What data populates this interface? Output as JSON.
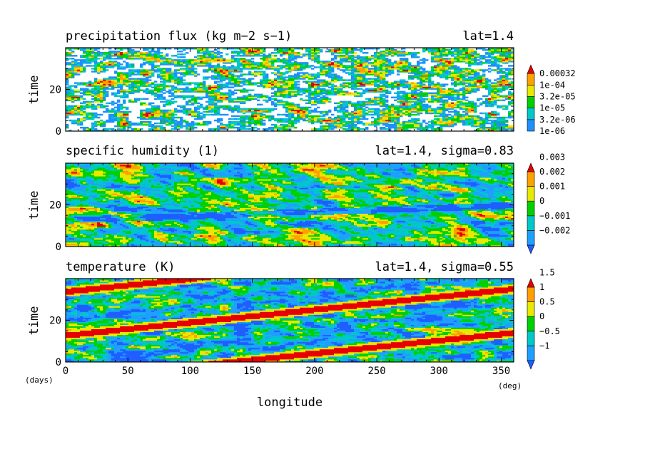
{
  "chart_data": [
    {
      "type": "heatmap",
      "title": "precipitation flux (kg m−2 s−1)",
      "annotation": "lat=1.4",
      "ylabel": "time",
      "xlim": [
        0,
        360
      ],
      "ylim": [
        0,
        40
      ],
      "y_ticks": [
        0,
        20
      ],
      "colorbar": {
        "levels": [
          "1e-06",
          "3.2e-06",
          "1e-05",
          "3.2e-05",
          "1e-04",
          "0.00032"
        ],
        "colors": [
          "#1f8fff",
          "#00c8c8",
          "#00d000",
          "#e8e800",
          "#ffa000",
          "#e80000"
        ],
        "below_color": "#ffffff"
      }
    },
    {
      "type": "heatmap",
      "title": "specific humidity (1)",
      "annotation": "lat=1.4, sigma=0.83",
      "ylabel": "time",
      "xlim": [
        0,
        360
      ],
      "ylim": [
        0,
        40
      ],
      "y_ticks": [
        0,
        20
      ],
      "colorbar": {
        "levels": [
          "−0.002",
          "−0.001",
          "0",
          "0.001",
          "0.002",
          "0.003"
        ],
        "colors": [
          "#1f5fff",
          "#1f9fff",
          "#00c8c8",
          "#00d000",
          "#e8e800",
          "#ffa000",
          "#e80000"
        ],
        "below_color": "#1f3fff"
      }
    },
    {
      "type": "heatmap",
      "title": "temperature (K)",
      "annotation": "lat=1.4, sigma=0.55",
      "ylabel": "time",
      "xlabel": "longitude",
      "x_unit": "(deg)",
      "y_unit": "(days)",
      "xlim": [
        0,
        360
      ],
      "ylim": [
        0,
        40
      ],
      "x_ticks": [
        0,
        50,
        100,
        150,
        200,
        250,
        300,
        350
      ],
      "y_ticks": [
        0,
        20
      ],
      "colorbar": {
        "levels": [
          "−1",
          "−0.5",
          "0",
          "0.5",
          "1",
          "1.5"
        ],
        "colors": [
          "#1f5fff",
          "#1f9fff",
          "#00c8c8",
          "#00d000",
          "#e8e800",
          "#ffa000",
          "#e80000"
        ],
        "below_color": "#1f3fff"
      },
      "features": {
        "warm_bands": [
          {
            "lon": [
              120,
              360
            ],
            "time": [
              0,
              14
            ]
          },
          {
            "lon": [
              0,
              360
            ],
            "time": [
              13,
              35
            ]
          },
          {
            "lon": [
              0,
              95
            ],
            "time": [
              34,
              40
            ]
          }
        ]
      }
    }
  ]
}
